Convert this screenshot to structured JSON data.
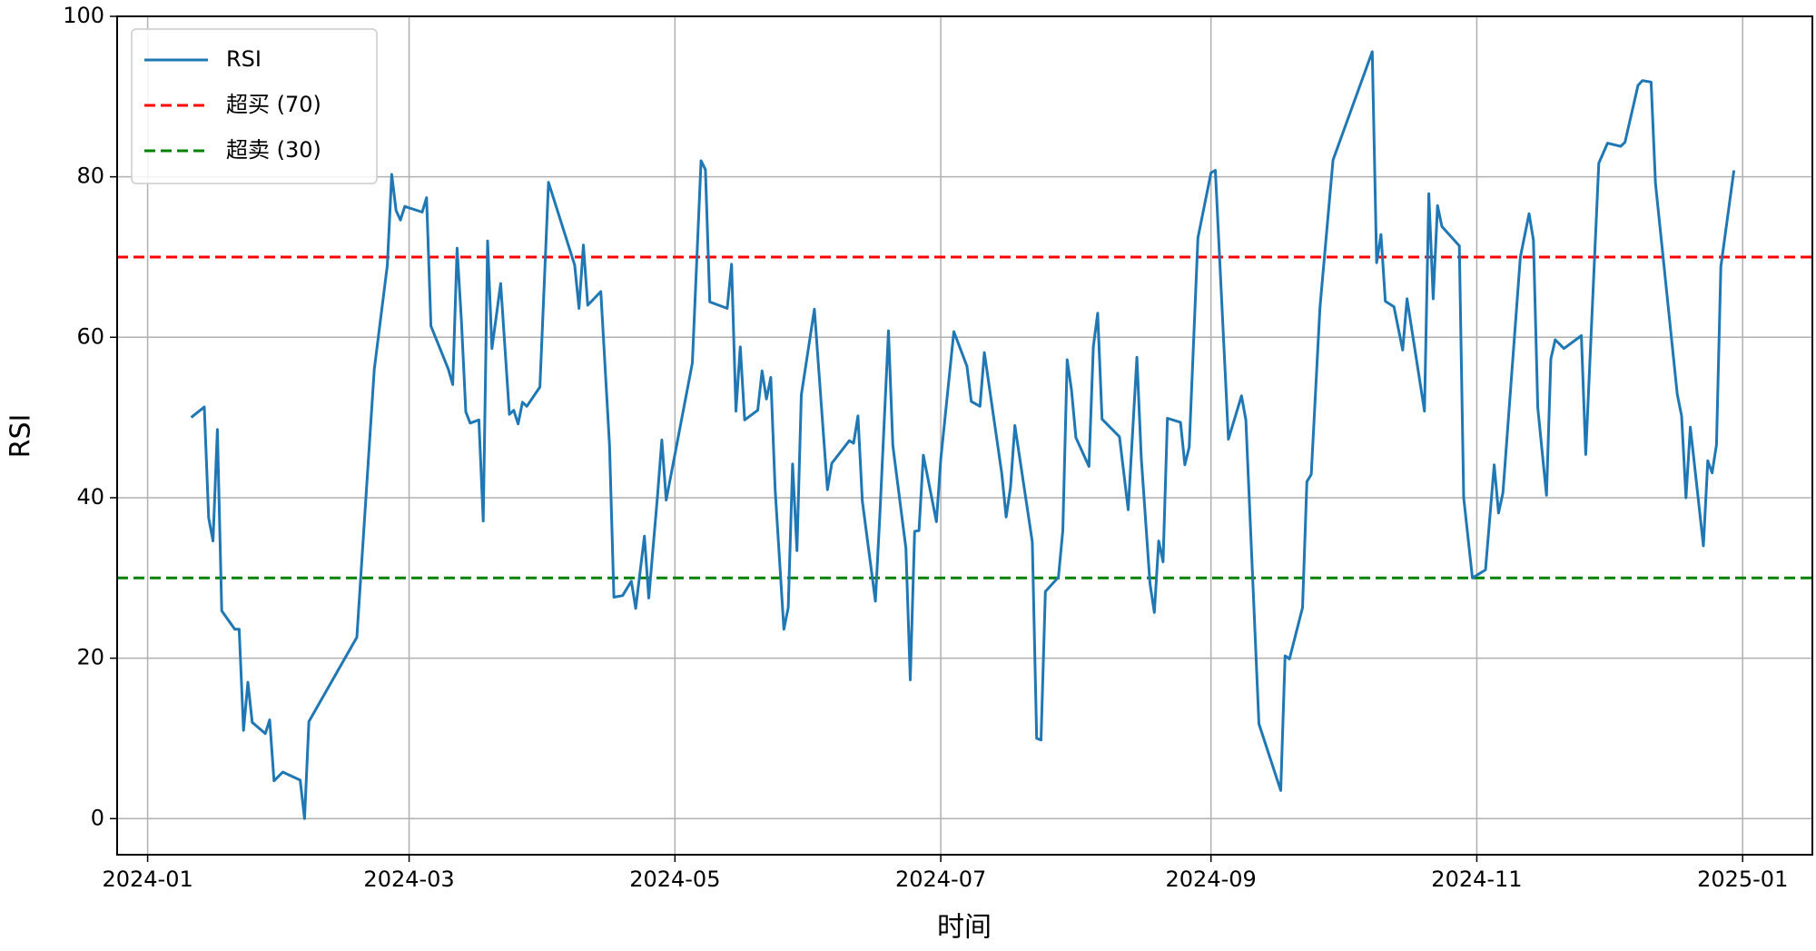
{
  "chart_data": {
    "type": "line",
    "xlabel": "时间",
    "ylabel": "RSI",
    "x": [
      10,
      13,
      14,
      15,
      16,
      17,
      20,
      21,
      22,
      23,
      24,
      27,
      28,
      29,
      31,
      35,
      36,
      37,
      48,
      52,
      55,
      56,
      57,
      58,
      59,
      63,
      64,
      65,
      69,
      70,
      71,
      72,
      73,
      74,
      76,
      77,
      78,
      79,
      81,
      83,
      84,
      85,
      86,
      87,
      90,
      92,
      98,
      99,
      100,
      101,
      104,
      106,
      107,
      109,
      111,
      112,
      114,
      115,
      117,
      118,
      119,
      125,
      127,
      128,
      129,
      133,
      134,
      135,
      136,
      137,
      140,
      141,
      142,
      143,
      144,
      146,
      147,
      148,
      149,
      150,
      153,
      156,
      157,
      161,
      162,
      163,
      164,
      167,
      168,
      170,
      171,
      174,
      175,
      176,
      177,
      178,
      181,
      182,
      185,
      188,
      189,
      191,
      192,
      196,
      197,
      198,
      199,
      203,
      204,
      205,
      206,
      209,
      210,
      211,
      212,
      213,
      216,
      217,
      218,
      219,
      223,
      225,
      227,
      228,
      230,
      231,
      232,
      233,
      234,
      237,
      238,
      239,
      241,
      244,
      245,
      248,
      251,
      252,
      255,
      260,
      261,
      262,
      265,
      266,
      267,
      269,
      272,
      281,
      282,
      283,
      284,
      286,
      288,
      289,
      293,
      294,
      295,
      296,
      297,
      301,
      302,
      304,
      307,
      309,
      310,
      311,
      315,
      317,
      318,
      319,
      321,
      322,
      323,
      325,
      329,
      330,
      333,
      335,
      338,
      339,
      342,
      343,
      345,
      346,
      351,
      352,
      353,
      354,
      357,
      358,
      359,
      360,
      361,
      364
    ],
    "series": [
      {
        "name": "RSI",
        "color": "#1f77b4",
        "values": [
          50,
          51.3,
          37.5,
          34.6,
          48.5,
          25.9,
          23.6,
          23.6,
          11,
          17,
          12,
          10.6,
          12.3,
          4.7,
          5.8,
          4.8,
          0,
          12.1,
          22.6,
          56,
          69,
          80.3,
          75.8,
          74.6,
          76.3,
          75.6,
          77.4,
          61.4,
          56,
          54.1,
          71.1,
          62,
          50.7,
          49.3,
          49.7,
          37.1,
          72,
          58.6,
          66.7,
          50.4,
          50.9,
          49.2,
          51.9,
          51.4,
          53.8,
          79.3,
          69,
          63.6,
          71.5,
          64,
          65.7,
          46.5,
          27.6,
          27.8,
          29.6,
          26.2,
          35.2,
          27.5,
          40.2,
          47.2,
          39.7,
          56.8,
          82,
          80.9,
          64.4,
          63.6,
          69.1,
          50.8,
          58.8,
          49.7,
          50.9,
          55.8,
          52.3,
          55,
          41,
          23.6,
          26.3,
          44.2,
          33.4,
          52.8,
          63.5,
          41,
          44.3,
          47.1,
          46.8,
          50.2,
          39.6,
          27.1,
          37.6,
          60.8,
          46.5,
          33.7,
          17.3,
          35.8,
          35.9,
          45.3,
          37,
          44.8,
          60.7,
          56.4,
          52,
          51.4,
          58.1,
          43,
          37.6,
          41.3,
          49,
          34.5,
          10,
          9.8,
          28.3,
          30.1,
          35.9,
          57.2,
          53.4,
          47.5,
          43.9,
          58.8,
          63,
          49.8,
          47.6,
          38.5,
          57.5,
          45,
          29.3,
          25.7,
          34.6,
          32,
          49.9,
          49.4,
          44.1,
          46.3,
          72.4,
          80.5,
          80.8,
          47.3,
          52.7,
          49.7,
          11.8,
          3.5,
          20.3,
          19.9,
          26.3,
          42,
          42.9,
          63.7,
          82.1,
          95.6,
          69.3,
          72.8,
          64.5,
          63.8,
          58.4,
          64.8,
          50.8,
          77.9,
          64.8,
          76.4,
          73.8,
          71.4,
          40,
          30,
          31,
          44.1,
          38.1,
          40.6,
          70,
          75.4,
          72.1,
          51.2,
          40.3,
          57.3,
          59.7,
          58.6,
          60.2,
          45.4,
          81.7,
          84.2,
          83.8,
          84.3,
          91.4,
          92,
          91.8,
          79.2,
          52.9,
          50.2,
          40,
          48.8,
          34,
          44.6,
          43.1,
          46.6,
          68.8,
          80.8
        ]
      }
    ],
    "hlines": [
      {
        "name": "超买 (70)",
        "value": 70,
        "color": "#ff0000"
      },
      {
        "name": "超卖 (30)",
        "value": 30,
        "color": "#008000"
      }
    ],
    "xlim": [
      -7,
      382
    ],
    "xticks": [
      {
        "value": 0,
        "label": "2024-01"
      },
      {
        "value": 60,
        "label": "2024-03"
      },
      {
        "value": 121,
        "label": "2024-05"
      },
      {
        "value": 182,
        "label": "2024-07"
      },
      {
        "value": 244,
        "label": "2024-09"
      },
      {
        "value": 305,
        "label": "2024-11"
      },
      {
        "value": 366,
        "label": "2025-01"
      }
    ],
    "ylim": [
      -4.5,
      100
    ],
    "yticks": [
      0,
      20,
      40,
      60,
      80,
      100
    ],
    "grid": true,
    "legend": "upper left"
  }
}
